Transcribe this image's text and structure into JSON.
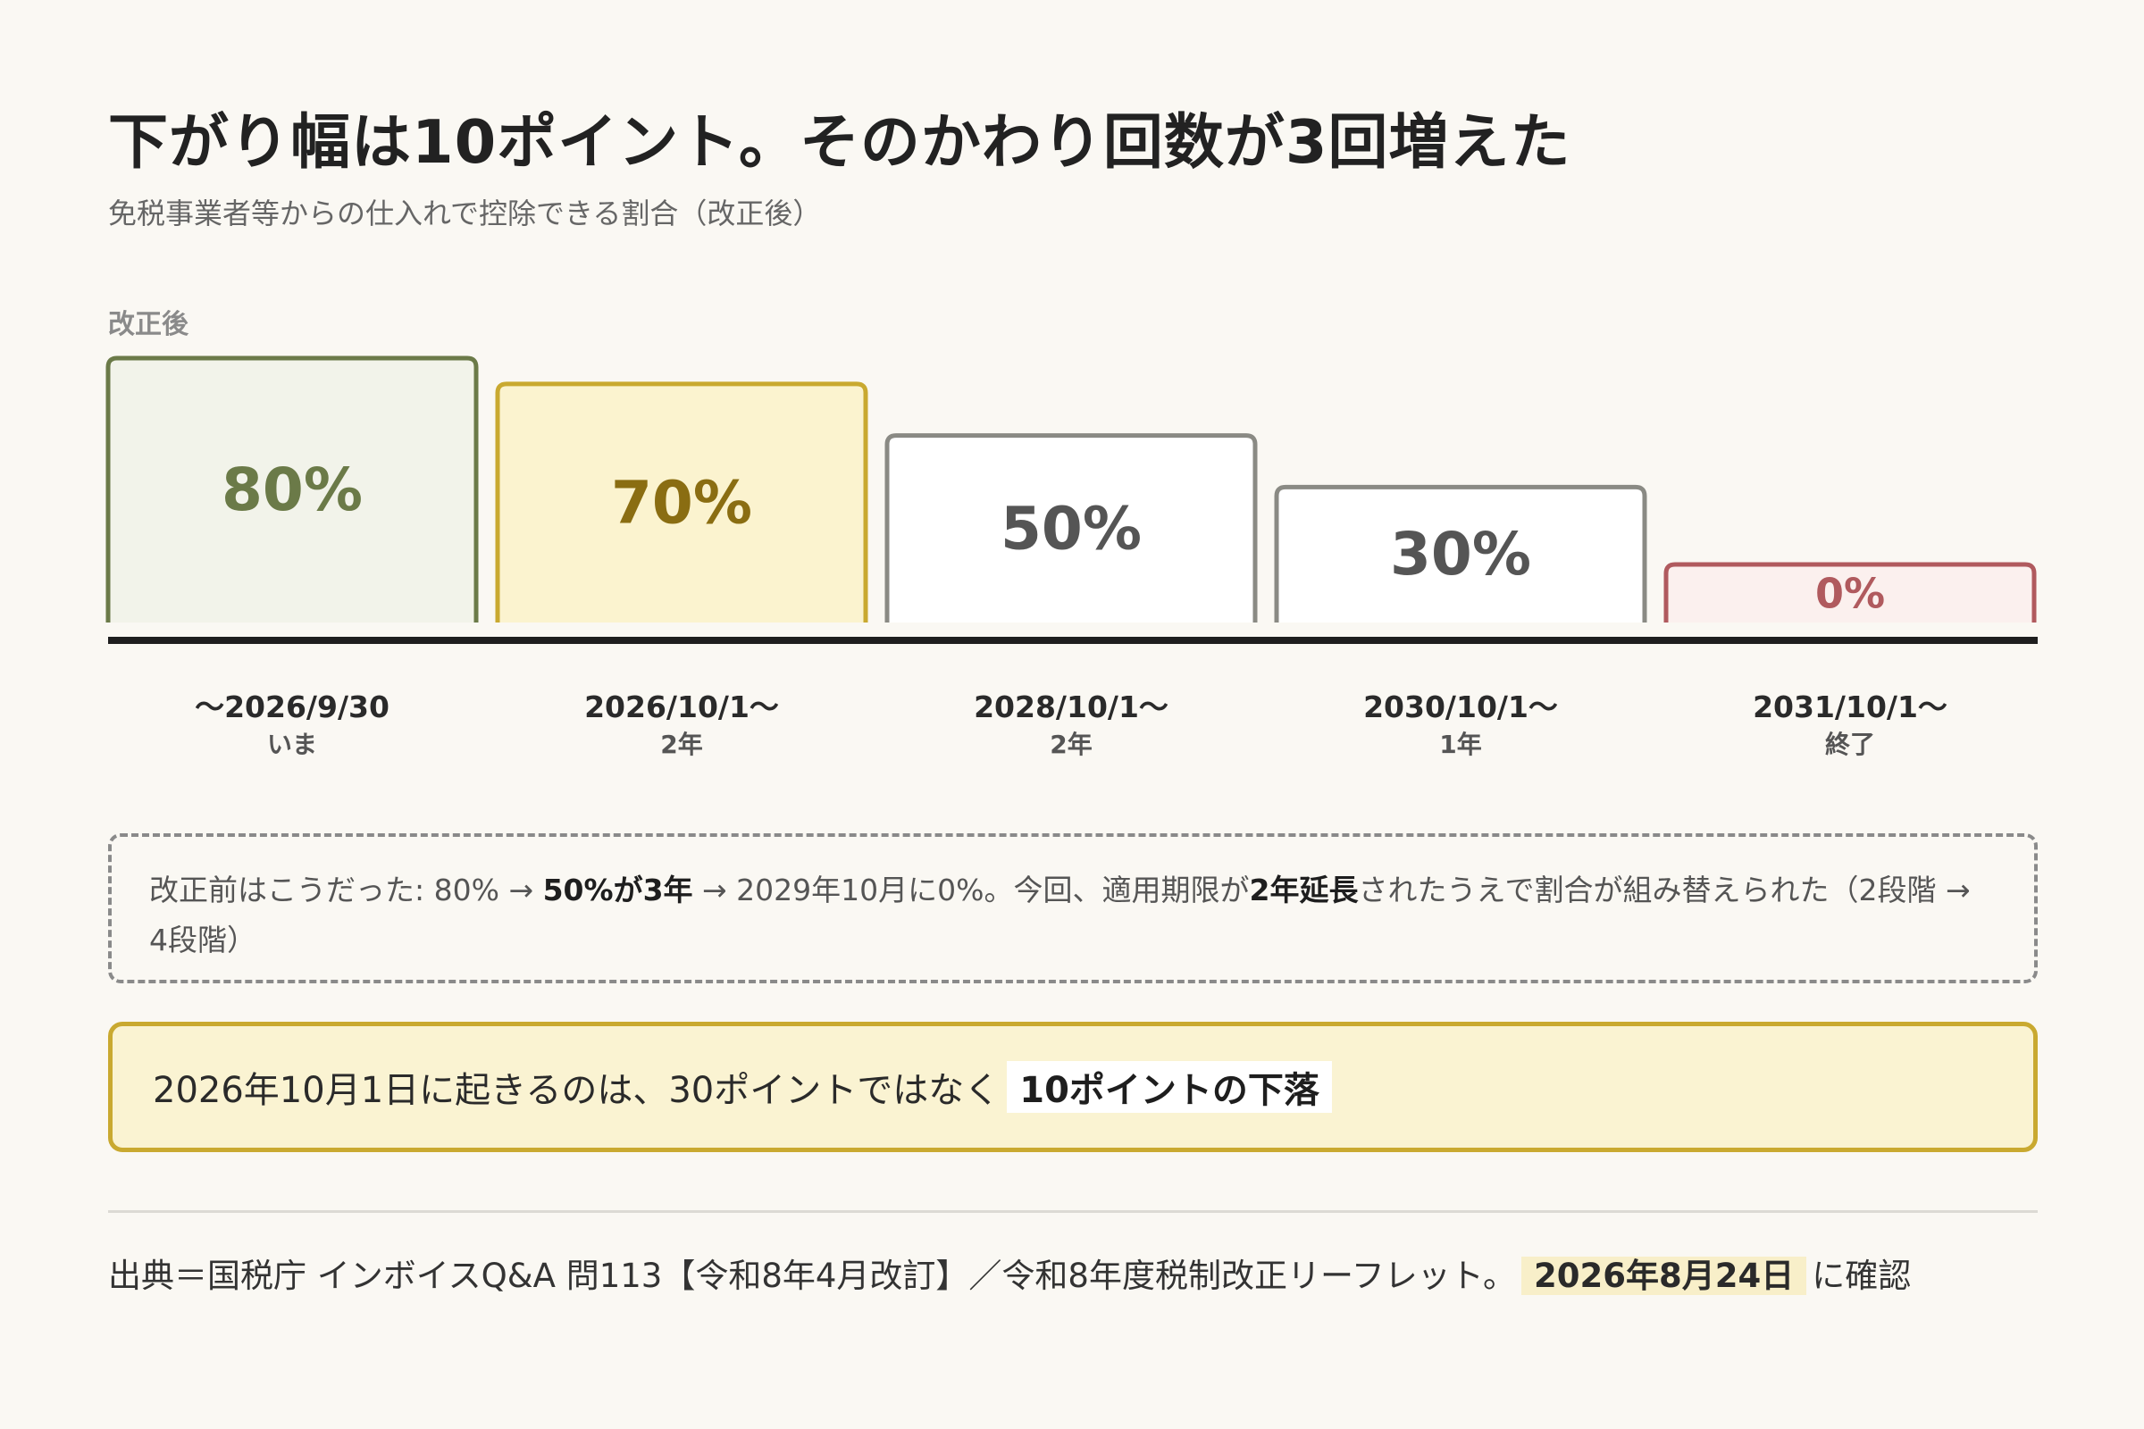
{
  "header": {
    "title": "下がり幅は10ポイント。そのかわり回数が3回増えた",
    "subtitle": "免税事業者等からの仕入れで控除できる割合（改正後）"
  },
  "chart_label": "改正後",
  "chart_data": {
    "type": "bar",
    "categories": [
      "〜2026/9/30",
      "2026/10/1〜",
      "2028/10/1〜",
      "2030/10/1〜",
      "2031/10/1〜"
    ],
    "category_notes": [
      "いま",
      "2年",
      "2年",
      "1年",
      "終了"
    ],
    "values": [
      80,
      70,
      50,
      30,
      0
    ],
    "value_labels": [
      "80%",
      "70%",
      "50%",
      "30%",
      "0%"
    ],
    "unit": "%",
    "colors": {
      "stroke": [
        "#6b7a48",
        "#c9a930",
        "#8a8a84",
        "#8a8a84",
        "#b05a5e"
      ],
      "fill": [
        "#f2f3ea",
        "#fbf3cf",
        "#ffffff",
        "#ffffff",
        "#fbf0ee"
      ],
      "text": [
        "#6b7a48",
        "#8a6d12",
        "#555555",
        "#555555",
        "#b05a5e"
      ]
    }
  },
  "note": {
    "text_1": "改正前はこうだった: 80% → ",
    "bold_1": "50%が3年",
    "text_2": " → 2029年10月に0%。今回、適用期限が",
    "bold_2": "2年延長",
    "text_3": "されたうえで割合が組み替えられた（2段階 → 4段階）"
  },
  "callout": {
    "text": "2026年10月1日に起きるのは、30ポイントではなく",
    "highlight": "10ポイントの下落"
  },
  "source": {
    "text": "出典＝国税庁 インボイスQ&A 問113【令和8年4月改訂】／令和8年度税制改正リーフレット。",
    "date": "2026年8月24日",
    "suffix": "に確認"
  }
}
